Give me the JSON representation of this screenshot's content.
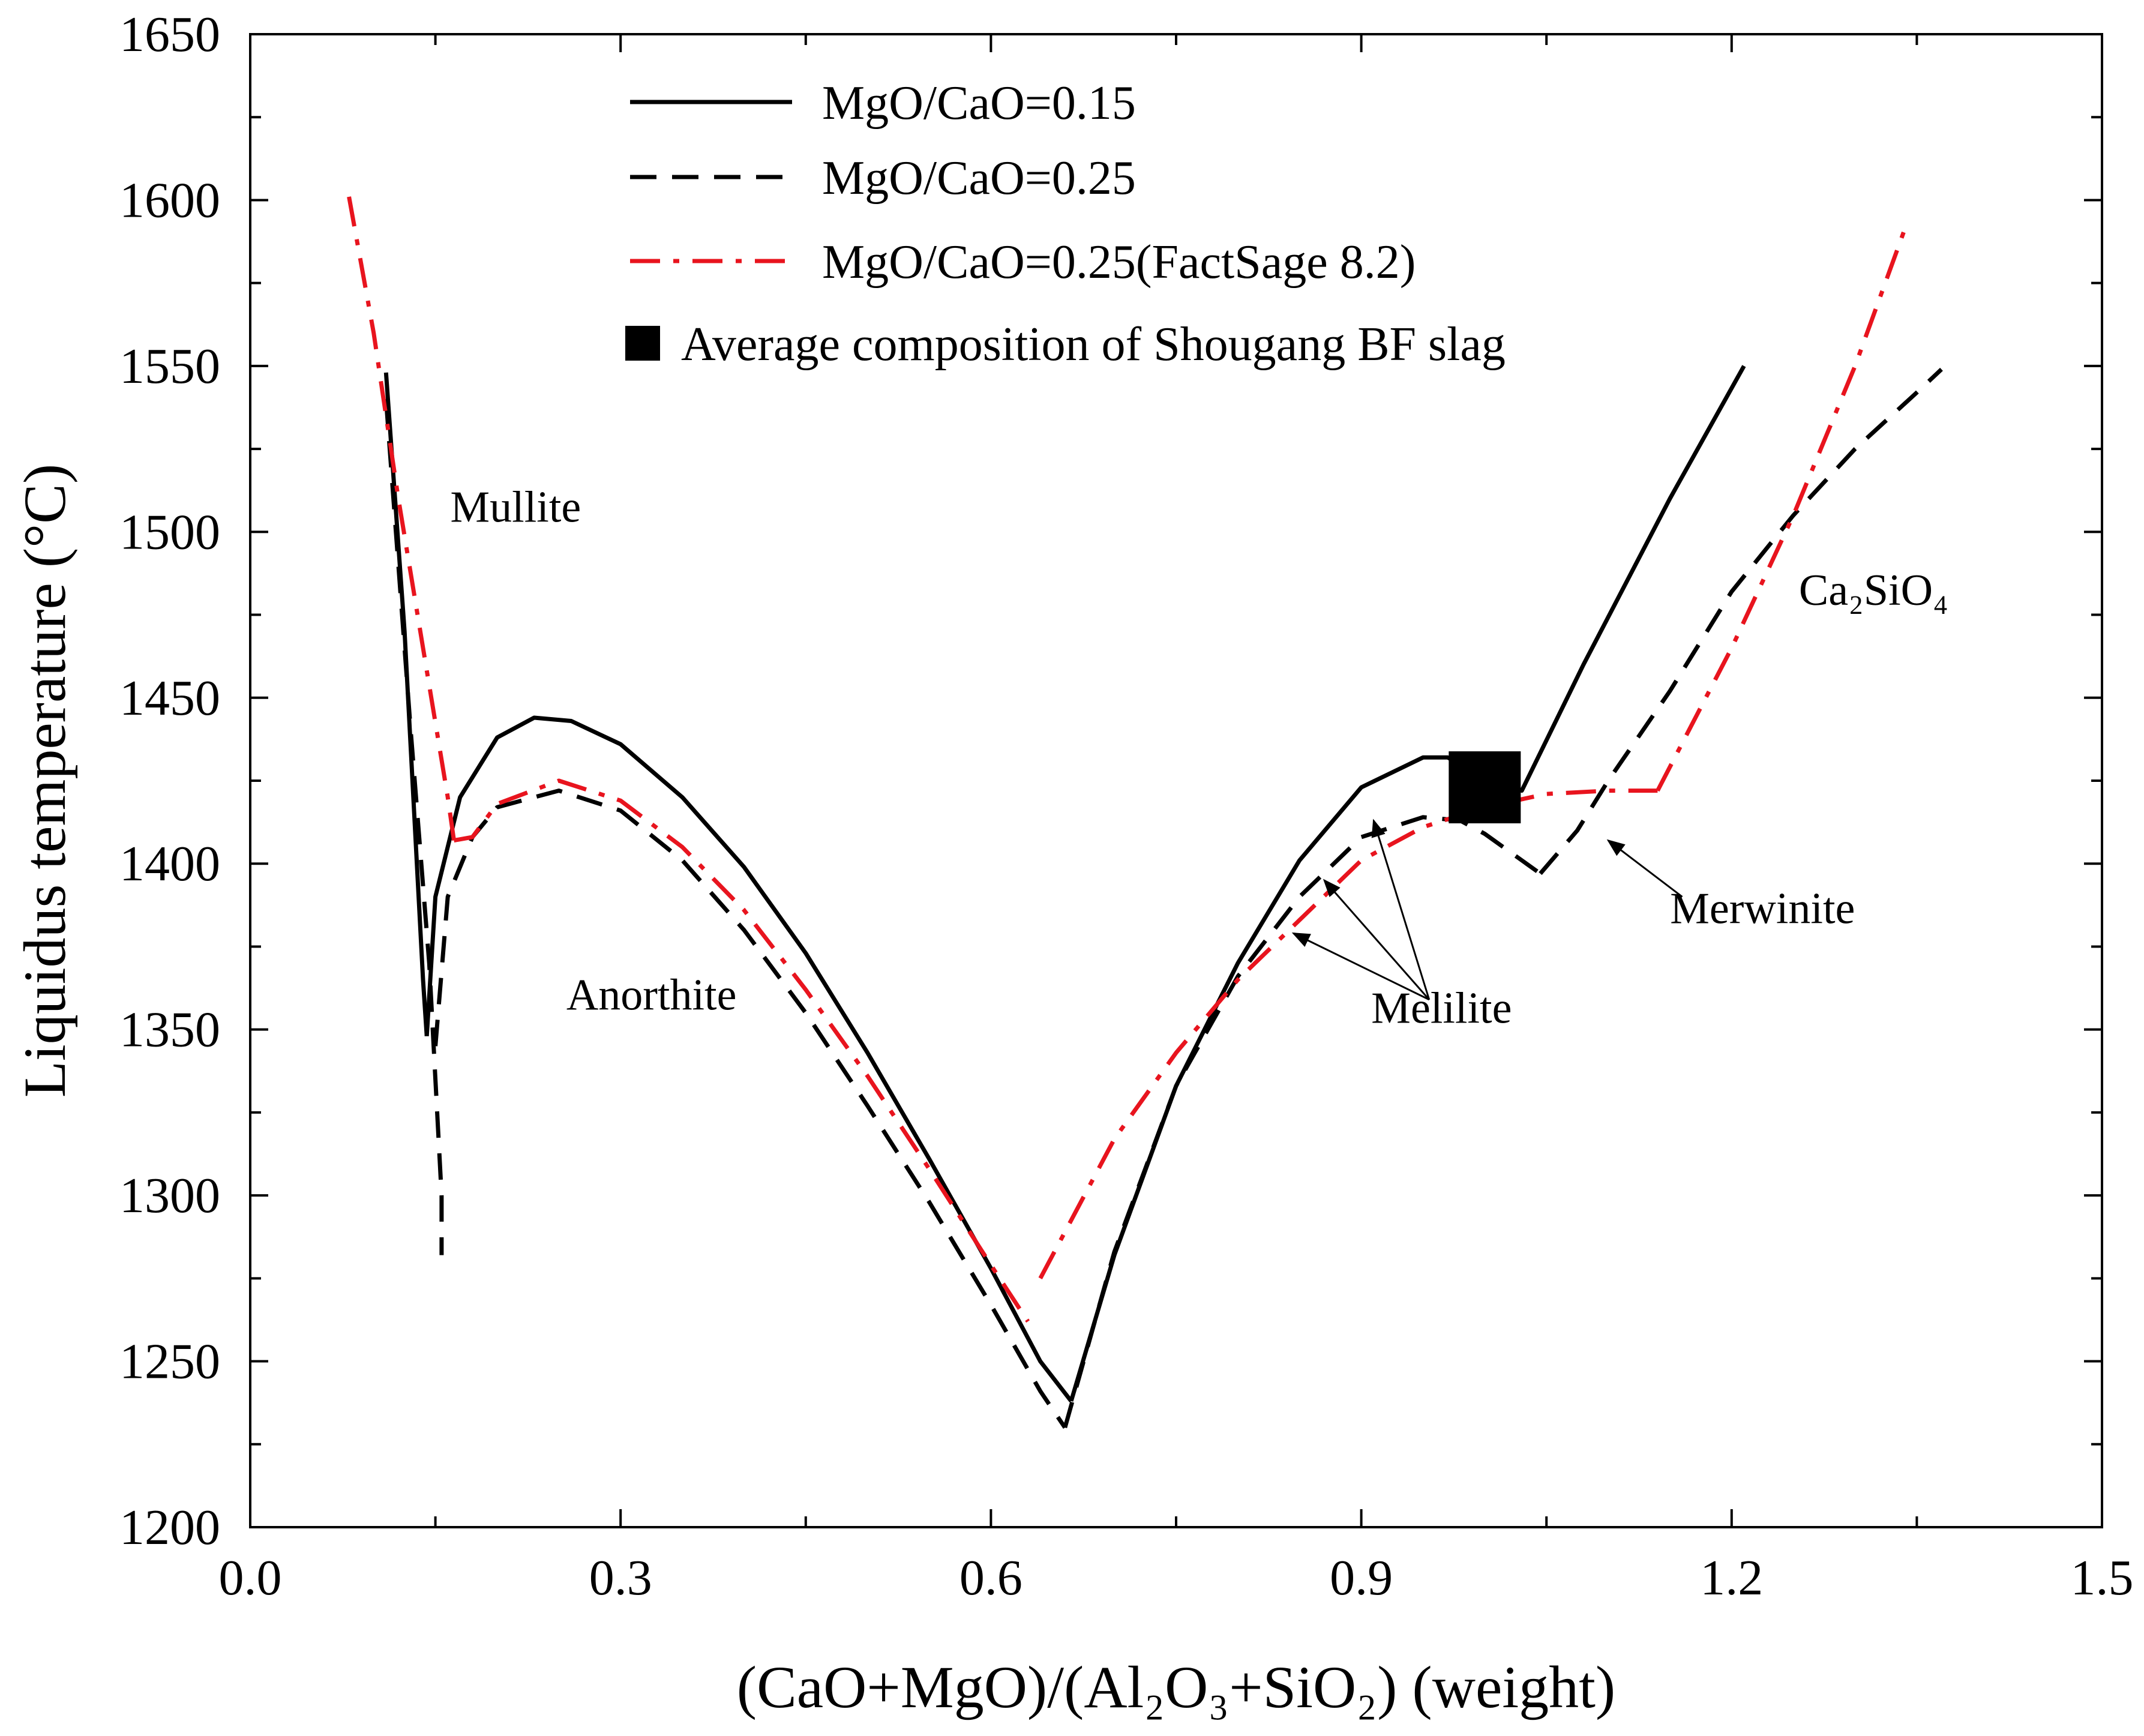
{
  "chart_data": {
    "type": "line",
    "xlabel": "(CaO+MgO)/(Al₂O₃+SiO₂) (weight)",
    "ylabel": "Liquidus temperature (°C)",
    "xlim": [
      0.0,
      1.5
    ],
    "ylim": [
      1200,
      1650
    ],
    "xticks": [
      "0.0",
      "0.3",
      "0.6",
      "0.9",
      "1.2",
      "1.5"
    ],
    "yticks": [
      "1200",
      "1250",
      "1300",
      "1350",
      "1400",
      "1450",
      "1500",
      "1550",
      "1600",
      "1650"
    ],
    "grid": false,
    "legend_position": "top-center",
    "series": [
      {
        "name": "MgO/CaO=0.15",
        "style": "solid",
        "color": "#000000",
        "segments": [
          [
            [
              0.11,
              1548
            ],
            [
              0.125,
              1470
            ],
            [
              0.135,
              1400
            ],
            [
              0.14,
              1365
            ],
            [
              0.143,
              1348
            ]
          ],
          [
            [
              0.143,
              1348
            ],
            [
              0.15,
              1390
            ],
            [
              0.17,
              1420
            ],
            [
              0.2,
              1438
            ],
            [
              0.23,
              1444
            ],
            [
              0.26,
              1443
            ],
            [
              0.3,
              1436
            ],
            [
              0.35,
              1420
            ],
            [
              0.4,
              1399
            ],
            [
              0.45,
              1373
            ],
            [
              0.5,
              1343
            ],
            [
              0.55,
              1311
            ],
            [
              0.6,
              1278
            ],
            [
              0.64,
              1250
            ],
            [
              0.665,
              1238
            ]
          ],
          [
            [
              0.665,
              1238
            ],
            [
              0.7,
              1282
            ],
            [
              0.75,
              1333
            ],
            [
              0.8,
              1370
            ],
            [
              0.85,
              1401
            ],
            [
              0.9,
              1423
            ],
            [
              0.95,
              1432
            ],
            [
              0.97,
              1432
            ],
            [
              0.99,
              1428
            ],
            [
              1.03,
              1422
            ],
            [
              1.08,
              1460
            ],
            [
              1.15,
              1510
            ],
            [
              1.21,
              1550
            ]
          ]
        ]
      },
      {
        "name": "MgO/CaO=0.25",
        "style": "dashed",
        "color": "#000000",
        "segments": [
          [
            [
              0.11,
              1540
            ],
            [
              0.13,
              1440
            ],
            [
              0.145,
              1370
            ],
            [
              0.155,
              1300
            ],
            [
              0.155,
              1282
            ]
          ],
          [
            [
              0.15,
              1345
            ],
            [
              0.16,
              1390
            ],
            [
              0.18,
              1408
            ],
            [
              0.2,
              1417
            ],
            [
              0.25,
              1422
            ],
            [
              0.3,
              1416
            ],
            [
              0.35,
              1401
            ],
            [
              0.4,
              1380
            ],
            [
              0.45,
              1355
            ],
            [
              0.5,
              1327
            ],
            [
              0.55,
              1298
            ],
            [
              0.6,
              1267
            ],
            [
              0.64,
              1241
            ],
            [
              0.66,
              1230
            ]
          ],
          [
            [
              0.66,
              1230
            ],
            [
              0.7,
              1283
            ],
            [
              0.75,
              1333
            ],
            [
              0.8,
              1366
            ],
            [
              0.85,
              1390
            ],
            [
              0.9,
              1408
            ],
            [
              0.95,
              1414
            ],
            [
              0.98,
              1413
            ],
            [
              1.0,
              1409
            ],
            [
              1.045,
              1397
            ]
          ],
          [
            [
              1.045,
              1397
            ],
            [
              1.075,
              1410
            ],
            [
              1.1,
              1425
            ],
            [
              1.15,
              1452
            ],
            [
              1.2,
              1482
            ],
            [
              1.25,
              1505
            ],
            [
              1.3,
              1525
            ],
            [
              1.35,
              1542
            ],
            [
              1.37,
              1549
            ]
          ]
        ]
      },
      {
        "name": "MgO/CaO=0.25(FactSage 8.2)",
        "style": "dashdot",
        "color": "#e8141e",
        "segments": [
          [
            [
              0.08,
              1601
            ],
            [
              0.1,
              1560
            ],
            [
              0.12,
              1510
            ],
            [
              0.14,
              1465
            ],
            [
              0.16,
              1420
            ],
            [
              0.165,
              1407
            ]
          ],
          [
            [
              0.165,
              1407
            ],
            [
              0.18,
              1408
            ],
            [
              0.2,
              1418
            ],
            [
              0.25,
              1425
            ],
            [
              0.3,
              1419
            ],
            [
              0.35,
              1405
            ],
            [
              0.4,
              1386
            ],
            [
              0.45,
              1362
            ],
            [
              0.5,
              1336
            ],
            [
              0.55,
              1308
            ],
            [
              0.6,
              1279
            ],
            [
              0.63,
              1262
            ]
          ],
          [
            [
              0.64,
              1275
            ],
            [
              0.7,
              1317
            ],
            [
              0.75,
              1343
            ],
            [
              0.8,
              1365
            ],
            [
              0.85,
              1383
            ],
            [
              0.9,
              1401
            ],
            [
              0.95,
              1411
            ],
            [
              1.0,
              1417
            ],
            [
              1.05,
              1421
            ],
            [
              1.1,
              1422
            ],
            [
              1.14,
              1422
            ]
          ],
          [
            [
              1.14,
              1422
            ],
            [
              1.2,
              1465
            ],
            [
              1.25,
              1505
            ],
            [
              1.3,
              1550
            ],
            [
              1.34,
              1591
            ]
          ]
        ]
      }
    ],
    "marker": {
      "name": "Average composition of Shougang BF slag",
      "shape": "square",
      "color": "#000000",
      "x": 1.0,
      "y": 1423
    },
    "region_labels": [
      {
        "text": "Mullite",
        "x": 0.215,
        "y": 1503
      },
      {
        "text": "Anorthite",
        "x": 0.325,
        "y": 1356
      },
      {
        "text": "Melilite",
        "x": 0.965,
        "y": 1352
      },
      {
        "text": "Merwinite",
        "x": 1.225,
        "y": 1382
      },
      {
        "text": "Ca₂SiO₄",
        "x": 1.315,
        "y": 1478
      }
    ],
    "arrows": [
      {
        "from": [
          0.955,
          1359
        ],
        "to": [
          0.91,
          1413
        ]
      },
      {
        "from": [
          0.955,
          1359
        ],
        "to": [
          0.87,
          1395
        ]
      },
      {
        "from": [
          0.955,
          1359
        ],
        "to": [
          0.845,
          1379
        ]
      },
      {
        "from": [
          1.16,
          1390
        ],
        "to": [
          1.1,
          1407
        ]
      }
    ]
  }
}
